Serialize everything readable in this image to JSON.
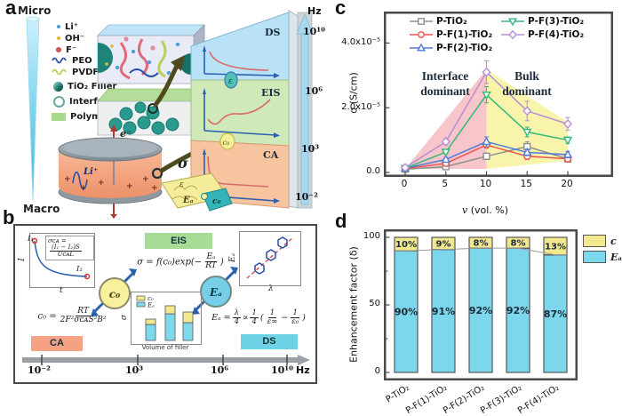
{
  "figure": {
    "a": {
      "panel_label": "a",
      "scale": {
        "top": "Micro",
        "bottom": "Macro"
      },
      "legend": [
        {
          "label": "Li⁺",
          "color": "#4da0dc",
          "type": "dot-s"
        },
        {
          "label": "OH⁻",
          "color": "#e3b93c",
          "type": "dot-s"
        },
        {
          "label": "F⁻",
          "color": "#d25050",
          "type": "dot"
        },
        {
          "label": "PEO",
          "color": "#2b4fa8",
          "type": "wave"
        },
        {
          "label": "PVDF",
          "color": "#b6cf5e",
          "type": "wave"
        },
        {
          "label": "TiO₂ Filler",
          "color": "#1e8379",
          "type": "sphere"
        },
        {
          "label": "Interface",
          "color": "#6ba8a2",
          "type": "ring"
        },
        {
          "label": "Polymer",
          "color": "#a9d98b",
          "type": "rect"
        }
      ],
      "battery": {
        "electron": "e⁻",
        "ion": "Li⁺",
        "plus": "+"
      },
      "sigma": "σ",
      "puzzle": {
        "eps": "ε",
        "ea": "Eₐ",
        "c0": "c₀"
      },
      "stack": {
        "ds": "DS",
        "eis": "EIS",
        "ca": "CA",
        "badge_eps": "ε",
        "badge_c0": "c₀"
      },
      "freq": {
        "unit": "Hz",
        "t10": "10¹⁰",
        "t6": "10⁶",
        "t3": "10³",
        "tm2": "10⁻²"
      }
    },
    "b": {
      "panel_label": "b",
      "ca_plot": {
        "y": "I",
        "x": "t",
        "i1": "I₁",
        "i2": "I₂",
        "eq_lhs": "σᴄᴀ =",
        "num": "(I₁ − I₂)S",
        "den": "UᴄᴀL"
      },
      "eis_tag": "EIS",
      "eq_sigma": {
        "pre": "σ = f(c₀)exp(−",
        "num": "Eₐ",
        "den": "RT",
        "post": ")"
      },
      "ds_plot": {
        "y": "Eₐ",
        "x": "λ"
      },
      "eq_c0": {
        "lhs": "c₀ =",
        "num": "RT",
        "den": "2F²σᴄᴀS²B²"
      },
      "node_c0": "c₀",
      "node_ea": "Eₐ",
      "inset": {
        "y": "σ",
        "x": "Volume of filler",
        "leg_c0": "c₀",
        "leg_ea": "Eₐ",
        "colors": {
          "ea": "#7fd9ec",
          "c0": "#f2e88f"
        },
        "bars": [
          {
            "ea": 18,
            "c0": 6
          },
          {
            "ea": 30,
            "c0": 9
          },
          {
            "ea": 20,
            "c0": 12
          }
        ]
      },
      "eq_ea": {
        "lhs": "Eₐ =",
        "f1n": "λ",
        "f1d": "4",
        "prop": "∝",
        "f2n": "1",
        "f2d": "4",
        "open": "(",
        "f3n": "1",
        "f3d": "ε∞",
        "minus": "−",
        "f4n": "1",
        "f4d": "ε₀",
        "close": ")"
      },
      "ca_tag": "CA",
      "ds_tag": "DS",
      "freq": {
        "tm2": "10⁻²",
        "t3": "10³",
        "t6": "10⁶",
        "t10": "10¹⁰",
        "unit": "Hz"
      }
    },
    "c": {
      "panel_label": "c"
    },
    "d": {
      "panel_label": "d"
    }
  },
  "chart_data": [
    {
      "id": "panel-c-conductivity",
      "type": "line",
      "xlabel_var": "v",
      "xlabel_rest": " (vol. %)",
      "ylabel": "σ (S/cm)",
      "x": [
        0,
        5,
        10,
        15,
        20
      ],
      "xtick_labels": [
        "0",
        "5",
        "10",
        "15",
        "20"
      ],
      "yticks": [
        {
          "value": 0,
          "label": "0.0"
        },
        {
          "value": 2e-05,
          "label": "2.0x10⁻⁵"
        },
        {
          "value": 4e-05,
          "label": "4.0x10⁻⁵"
        }
      ],
      "ylim": [
        -1.1e-06,
        4.95e-05
      ],
      "grid": false,
      "legend_position": "top-inside",
      "annotations": [
        {
          "text": "Interface\ndominant"
        },
        {
          "text": "Bulk\ndominant"
        }
      ],
      "regions": [
        {
          "name": "interface-dominant",
          "color": "#f5b6bd"
        },
        {
          "name": "bulk-dominant",
          "color": "#f8f3a3"
        }
      ],
      "series": [
        {
          "name": "P-TiO₂",
          "color": "#8f8f8f",
          "marker": "square",
          "values": [
            1e-06,
            1.8e-06,
            5e-06,
            8e-06,
            4.2e-06
          ],
          "errors": [
            0,
            0,
            1e-06,
            1.5e-06,
            1e-06
          ]
        },
        {
          "name": "P-F(1)-TiO₂",
          "color": "#ef5350",
          "marker": "circle",
          "values": [
            1.2e-06,
            2.8e-06,
            8.5e-06,
            5e-06,
            4.2e-06
          ],
          "errors": [
            0,
            0,
            1e-06,
            1e-06,
            1e-06
          ]
        },
        {
          "name": "P-F(2)-TiO₂",
          "color": "#4f7bd9",
          "marker": "triangle-up",
          "values": [
            1.3e-06,
            4e-06,
            9.5e-06,
            6.2e-06,
            5.5e-06
          ],
          "errors": [
            0,
            0,
            1.5e-06,
            1e-06,
            1e-06
          ]
        },
        {
          "name": "P-F(3)-TiO₂",
          "color": "#33b87a",
          "marker": "triangle-down",
          "values": [
            1.3e-06,
            6.3e-06,
            2.4e-05,
            1.25e-05,
            1e-05
          ],
          "errors": [
            0,
            5e-07,
            2.5e-06,
            1.5e-06,
            1e-06
          ]
        },
        {
          "name": "P-F(4)-TiO₂",
          "color": "#b78fd6",
          "marker": "diamond",
          "values": [
            1.5e-06,
            9.5e-06,
            3.1e-05,
            1.9e-05,
            1.5e-05
          ],
          "errors": [
            0,
            1e-06,
            3.5e-06,
            3e-06,
            2e-06
          ]
        }
      ]
    },
    {
      "id": "panel-d-enhancement",
      "type": "stacked-bar",
      "ylabel": "Enhancement factor (δ)",
      "categories": [
        "P-TiO₂",
        "P-F(1)-TiO₂",
        "P-F(2)-TiO₂",
        "P-F(3)-TiO₂",
        "P-F(4)-TiO₂"
      ],
      "ytick_labels": [
        "0",
        "50",
        "100"
      ],
      "ylim": [
        0,
        100
      ],
      "series": [
        {
          "name": "Eₐ",
          "color": "#7dd7ec",
          "values": [
            90,
            91,
            92,
            92,
            87
          ],
          "labels": [
            "90%",
            "91%",
            "92%",
            "92%",
            "87%"
          ]
        },
        {
          "name": "c",
          "color": "#f2e88f",
          "values": [
            10,
            9,
            8,
            8,
            13
          ],
          "labels": [
            "10%",
            "9%",
            "8%",
            "8%",
            "13%"
          ]
        }
      ],
      "legend": [
        {
          "label": "c",
          "color": "#f2e88f"
        },
        {
          "label": "Eₐ",
          "color": "#7dd7ec"
        }
      ],
      "legend_position": "right-outside"
    }
  ]
}
